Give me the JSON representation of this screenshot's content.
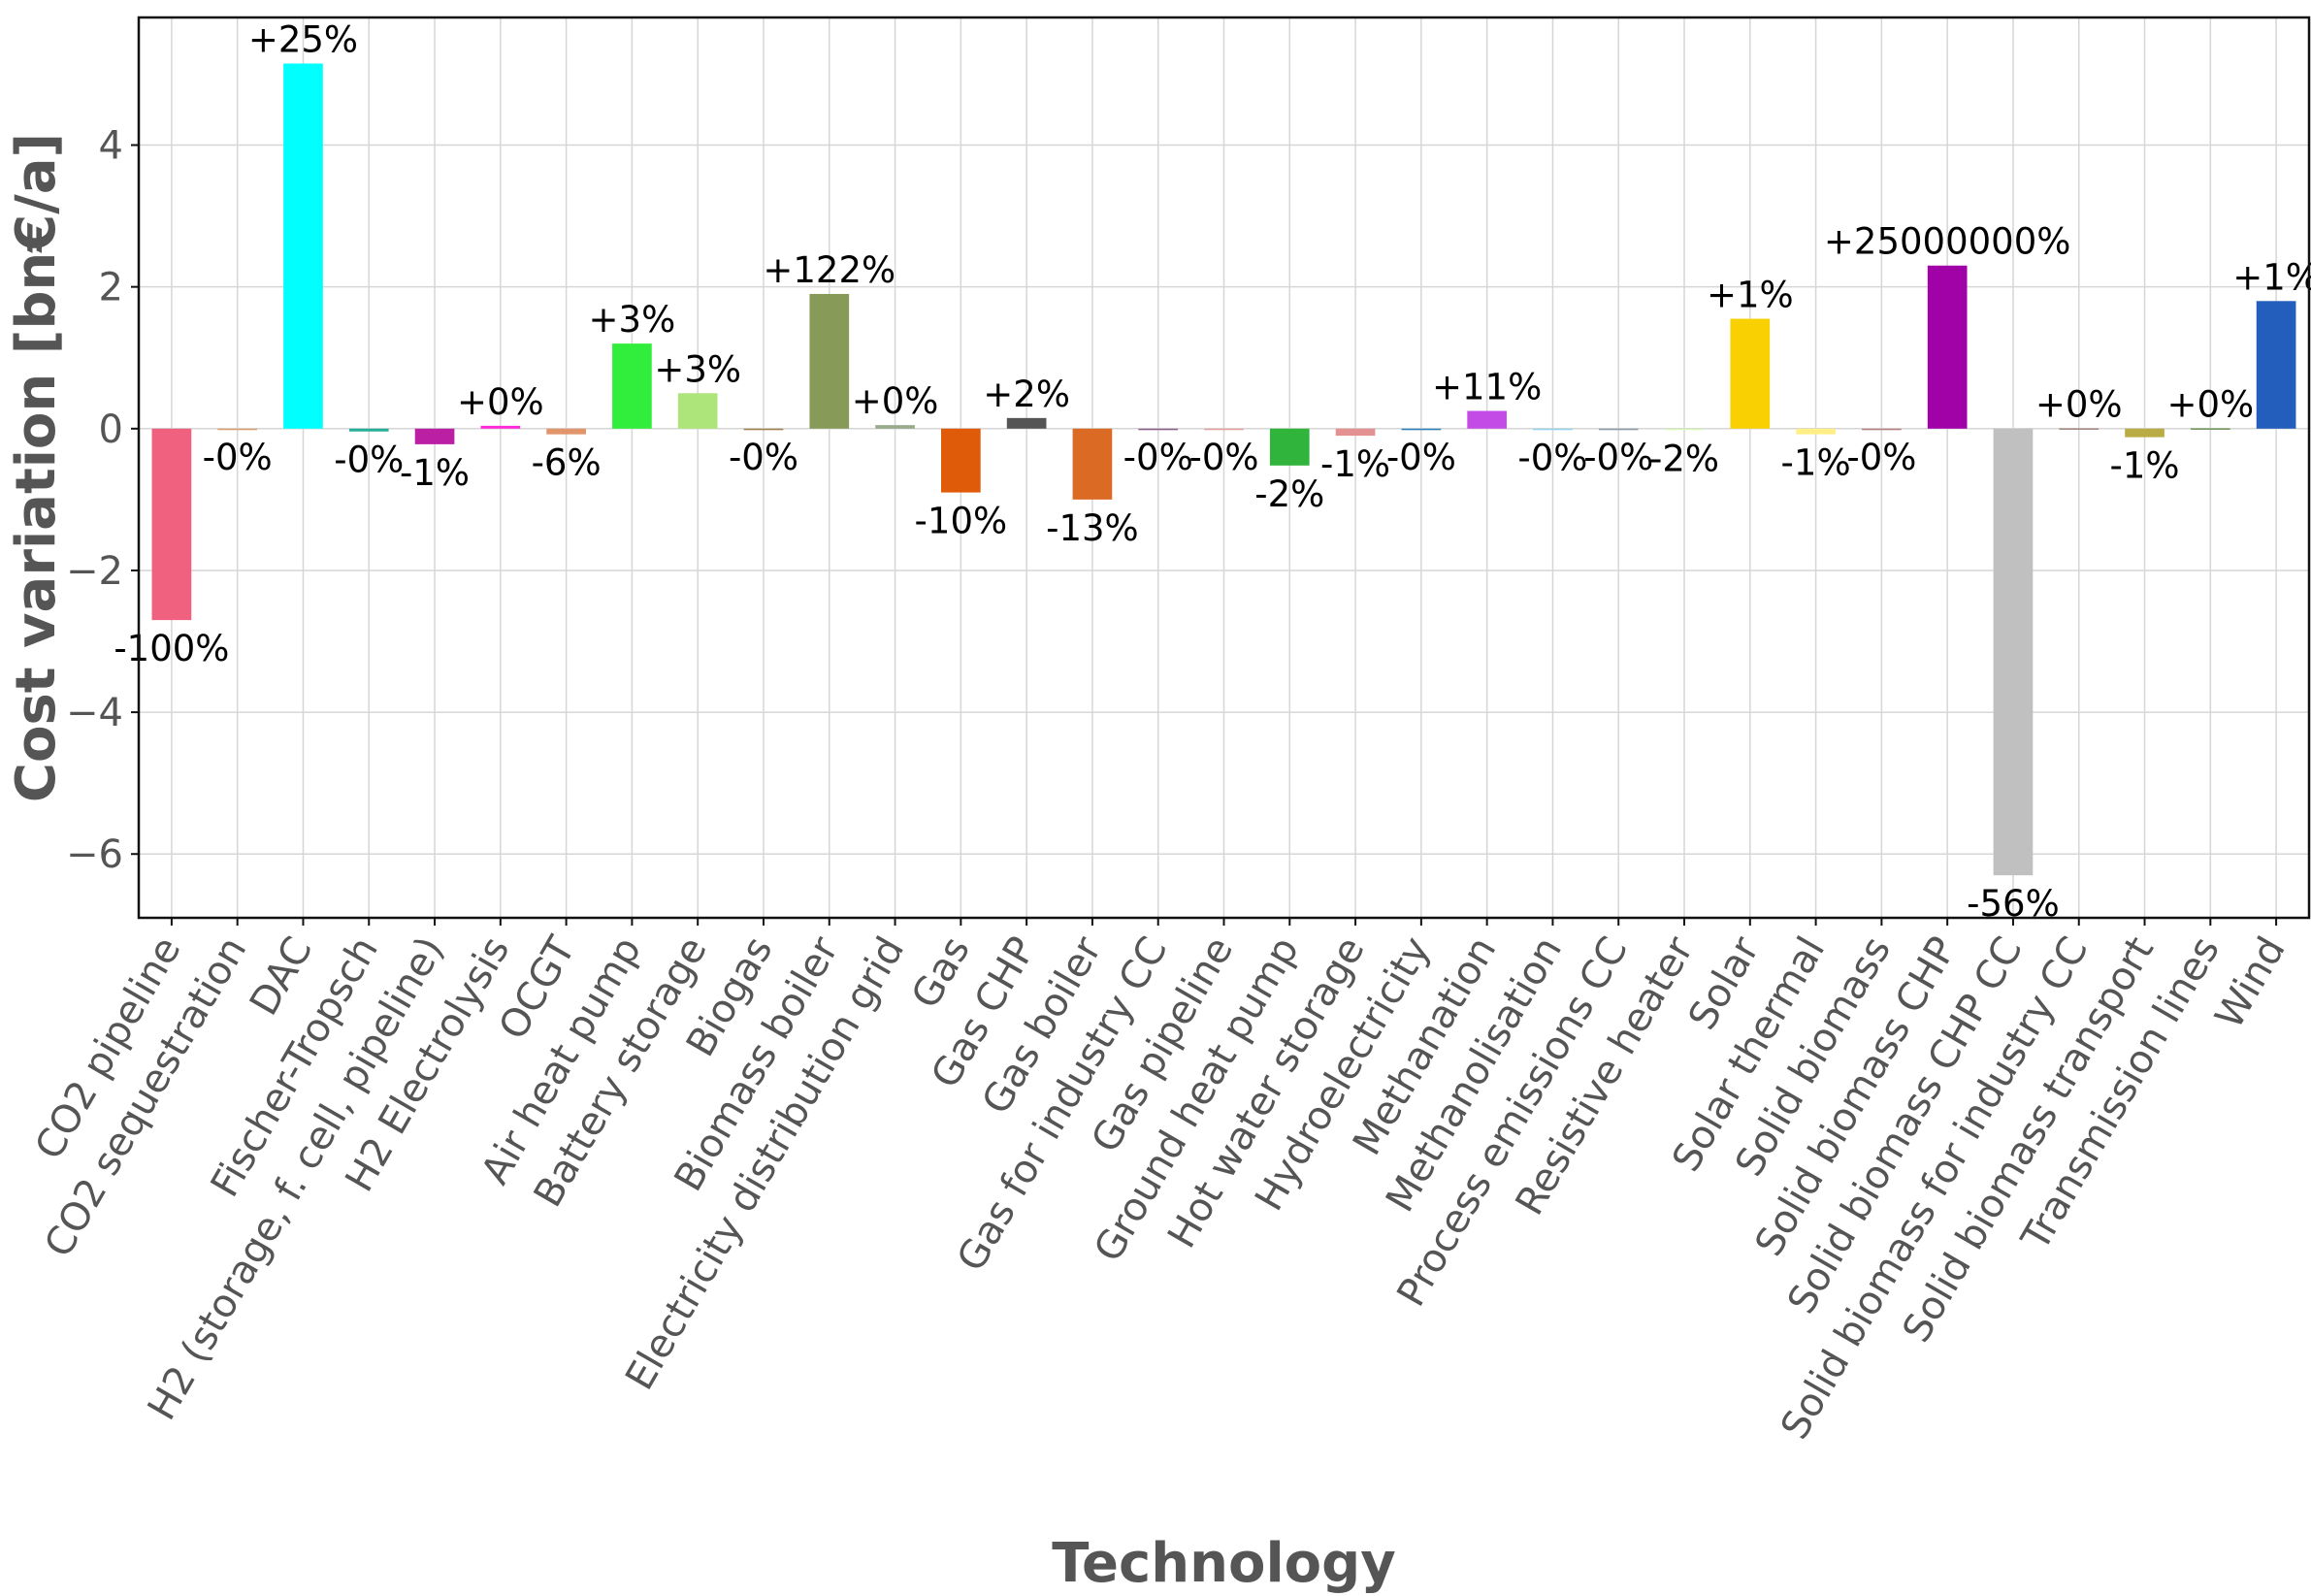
{
  "chart_data": {
    "type": "bar",
    "title": "",
    "xlabel": "Technology",
    "ylabel": "Cost variation [bn€/a]",
    "ylim": [
      -6.9,
      5.8
    ],
    "yticks": [
      {
        "value": -6,
        "label": "−6"
      },
      {
        "value": -4,
        "label": "−4"
      },
      {
        "value": -2,
        "label": "−2"
      },
      {
        "value": 0,
        "label": "0"
      },
      {
        "value": 2,
        "label": "2"
      },
      {
        "value": 4,
        "label": "4"
      }
    ],
    "grid": true,
    "categories": [
      "CO2 pipeline",
      "CO2 sequestration",
      "DAC",
      "Fischer-Tropsch",
      "H2 (storage, f. cell, pipeline)",
      "H2 Electrolysis",
      "OCGT",
      "Air heat pump",
      "Battery storage",
      "Biogas",
      "Biomass boiler",
      "Electricity distribution grid",
      "Gas",
      "Gas CHP",
      "Gas boiler",
      "Gas for industry CC",
      "Gas pipeline",
      "Ground heat pump",
      "Hot water storage",
      "Hydroelectricity",
      "Methanation",
      "Methanolisation",
      "Process emissions CC",
      "Resistive heater",
      "Solar",
      "Solar thermal",
      "Solid biomass",
      "Solid biomass CHP",
      "Solid biomass CHP CC",
      "Solid biomass for industry CC",
      "Solid biomass transport",
      "Transmission lines",
      "Wind"
    ],
    "values": [
      -2.7,
      -0.005,
      5.15,
      -0.04,
      -0.22,
      0.04,
      -0.08,
      1.2,
      0.5,
      -0.005,
      1.9,
      0.05,
      -0.9,
      0.15,
      -1.0,
      -0.005,
      -0.005,
      -0.52,
      -0.1,
      -0.005,
      0.25,
      -0.01,
      -0.005,
      -0.02,
      1.55,
      -0.08,
      -0.005,
      2.3,
      -6.3,
      0.005,
      -0.12,
      0.005,
      1.8
    ],
    "labels": [
      "-100%",
      "-0%",
      "+25%",
      "-0%",
      "-1%",
      "+0%",
      "-6%",
      "+3%",
      "+3%",
      "-0%",
      "+122%",
      "+0%",
      "-10%",
      "+2%",
      "-13%",
      "-0%",
      "-0%",
      "-2%",
      "-1%",
      "-0%",
      "+11%",
      "-0%",
      "-0%",
      "-2%",
      "+1%",
      "-1%",
      "-0%",
      "+25000000%",
      "-56%",
      "+0%",
      "-1%",
      "+0%",
      "+1%"
    ],
    "colors": [
      "#f0617f",
      "#d8a070",
      "#00ffff",
      "#25b09a",
      "#bb1fa3",
      "#ff29d9",
      "#e2946b",
      "#32ee3c",
      "#aee57a",
      "#a08050",
      "#889a58",
      "#97ab8a",
      "#e05b09",
      "#555555",
      "#db6a25",
      "#8b5e8b",
      "#e8a0a0",
      "#31b43b",
      "#e39191",
      "#2980b9",
      "#c44ce6",
      "#94d4ec",
      "#8a9aa6",
      "#d8f9b8",
      "#f9d002",
      "#ffef86",
      "#b58080",
      "#a102a8",
      "#c0c0c0",
      "#a08878",
      "#baac44",
      "#6c9459",
      "#235ebc"
    ]
  }
}
